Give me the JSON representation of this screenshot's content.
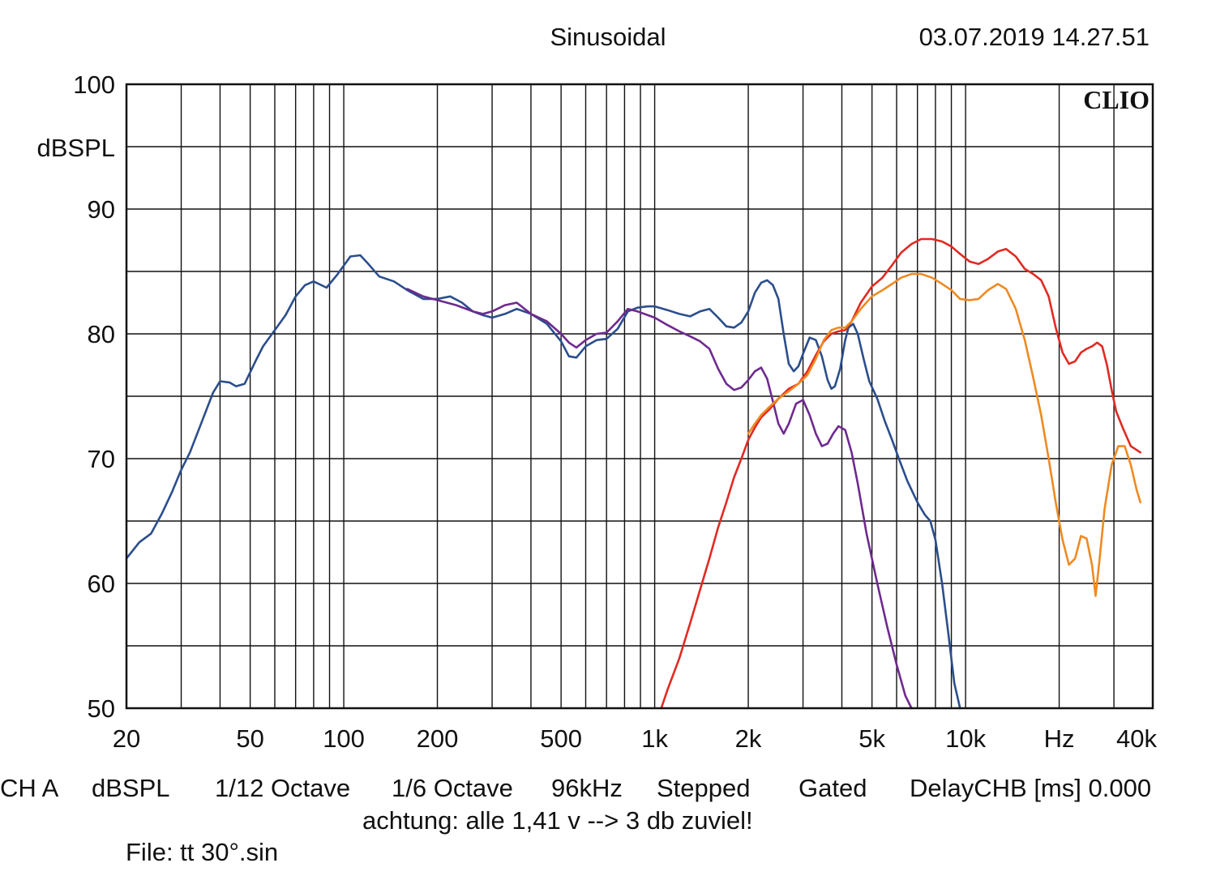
{
  "header": {
    "title": "Sinusoidal",
    "timestamp": "03.07.2019 14.27.51",
    "logo": "CLIO"
  },
  "chart_data": {
    "type": "line",
    "xscale": "log",
    "xlim": [
      20,
      40000
    ],
    "ylim": [
      50,
      100
    ],
    "ylabel": "dBSPL",
    "xlabel": "Hz",
    "y_ticks": [
      "100",
      "90",
      "80",
      "70",
      "60",
      "50"
    ],
    "x_ticks": [
      {
        "v": 20,
        "label": "20"
      },
      {
        "v": 50,
        "label": "50"
      },
      {
        "v": 100,
        "label": "100"
      },
      {
        "v": 200,
        "label": "200"
      },
      {
        "v": 500,
        "label": "500"
      },
      {
        "v": 1000,
        "label": "1k"
      },
      {
        "v": 2000,
        "label": "2k"
      },
      {
        "v": 5000,
        "label": "5k"
      },
      {
        "v": 10000,
        "label": "10k"
      },
      {
        "v": 20000,
        "label": "Hz"
      },
      {
        "v": 40000,
        "label": "40k"
      }
    ],
    "series": [
      {
        "name": "blue",
        "color": "#2b4e8c",
        "points": [
          [
            20,
            62.0
          ],
          [
            22,
            63.3
          ],
          [
            24,
            64.0
          ],
          [
            26,
            65.6
          ],
          [
            28,
            67.3
          ],
          [
            30,
            69.1
          ],
          [
            32,
            70.5
          ],
          [
            35,
            73.0
          ],
          [
            38,
            75.3
          ],
          [
            40,
            76.2
          ],
          [
            43,
            76.1
          ],
          [
            45,
            75.8
          ],
          [
            48,
            76.0
          ],
          [
            52,
            77.8
          ],
          [
            55,
            79.0
          ],
          [
            60,
            80.3
          ],
          [
            65,
            81.5
          ],
          [
            70,
            83.0
          ],
          [
            75,
            83.9
          ],
          [
            80,
            84.2
          ],
          [
            88,
            83.7
          ],
          [
            95,
            84.7
          ],
          [
            105,
            86.2
          ],
          [
            113,
            86.3
          ],
          [
            120,
            85.6
          ],
          [
            130,
            84.6
          ],
          [
            145,
            84.2
          ],
          [
            160,
            83.5
          ],
          [
            180,
            82.8
          ],
          [
            200,
            82.8
          ],
          [
            220,
            83.0
          ],
          [
            240,
            82.5
          ],
          [
            260,
            81.8
          ],
          [
            280,
            81.5
          ],
          [
            300,
            81.3
          ],
          [
            330,
            81.6
          ],
          [
            360,
            82.0
          ],
          [
            400,
            81.6
          ],
          [
            450,
            80.8
          ],
          [
            500,
            79.4
          ],
          [
            530,
            78.2
          ],
          [
            560,
            78.1
          ],
          [
            600,
            79.0
          ],
          [
            650,
            79.5
          ],
          [
            700,
            79.6
          ],
          [
            760,
            80.4
          ],
          [
            820,
            81.8
          ],
          [
            880,
            82.1
          ],
          [
            950,
            82.2
          ],
          [
            1000,
            82.2
          ],
          [
            1100,
            81.9
          ],
          [
            1200,
            81.6
          ],
          [
            1300,
            81.4
          ],
          [
            1400,
            81.8
          ],
          [
            1500,
            82.0
          ],
          [
            1600,
            81.3
          ],
          [
            1700,
            80.6
          ],
          [
            1800,
            80.5
          ],
          [
            1900,
            80.9
          ],
          [
            2000,
            81.8
          ],
          [
            2100,
            83.3
          ],
          [
            2200,
            84.1
          ],
          [
            2300,
            84.3
          ],
          [
            2400,
            83.9
          ],
          [
            2500,
            82.8
          ],
          [
            2600,
            80.0
          ],
          [
            2700,
            77.6
          ],
          [
            2800,
            77.0
          ],
          [
            2900,
            77.4
          ],
          [
            3000,
            78.4
          ],
          [
            3150,
            79.7
          ],
          [
            3300,
            79.5
          ],
          [
            3450,
            78.2
          ],
          [
            3600,
            76.3
          ],
          [
            3700,
            75.6
          ],
          [
            3800,
            75.8
          ],
          [
            3950,
            77.2
          ],
          [
            4100,
            79.5
          ],
          [
            4200,
            80.5
          ],
          [
            4350,
            80.8
          ],
          [
            4500,
            80.0
          ],
          [
            4700,
            78.0
          ],
          [
            4900,
            76.2
          ],
          [
            5200,
            74.8
          ],
          [
            5500,
            73.0
          ],
          [
            5800,
            71.5
          ],
          [
            6100,
            70.0
          ],
          [
            6500,
            68.2
          ],
          [
            7000,
            66.5
          ],
          [
            7400,
            65.5
          ],
          [
            7700,
            65.0
          ],
          [
            8000,
            63.5
          ],
          [
            8400,
            60.0
          ],
          [
            8800,
            56.0
          ],
          [
            9200,
            52.0
          ],
          [
            9600,
            50.0
          ]
        ]
      },
      {
        "name": "purple",
        "color": "#6e2a8e",
        "points": [
          [
            160,
            83.6
          ],
          [
            180,
            83.0
          ],
          [
            200,
            82.7
          ],
          [
            230,
            82.3
          ],
          [
            260,
            81.8
          ],
          [
            280,
            81.6
          ],
          [
            300,
            81.8
          ],
          [
            330,
            82.3
          ],
          [
            360,
            82.5
          ],
          [
            400,
            81.6
          ],
          [
            450,
            81.0
          ],
          [
            500,
            80.0
          ],
          [
            530,
            79.3
          ],
          [
            560,
            78.9
          ],
          [
            600,
            79.5
          ],
          [
            650,
            80.0
          ],
          [
            700,
            80.1
          ],
          [
            760,
            81.0
          ],
          [
            820,
            82.0
          ],
          [
            880,
            81.8
          ],
          [
            950,
            81.5
          ],
          [
            1000,
            81.3
          ],
          [
            1100,
            80.7
          ],
          [
            1200,
            80.2
          ],
          [
            1300,
            79.8
          ],
          [
            1400,
            79.4
          ],
          [
            1500,
            78.8
          ],
          [
            1600,
            77.2
          ],
          [
            1700,
            76.0
          ],
          [
            1800,
            75.5
          ],
          [
            1900,
            75.7
          ],
          [
            2000,
            76.3
          ],
          [
            2100,
            77.0
          ],
          [
            2200,
            77.3
          ],
          [
            2300,
            76.4
          ],
          [
            2400,
            74.6
          ],
          [
            2500,
            72.8
          ],
          [
            2600,
            72.0
          ],
          [
            2700,
            72.8
          ],
          [
            2850,
            74.4
          ],
          [
            3000,
            74.7
          ],
          [
            3150,
            73.5
          ],
          [
            3300,
            72.0
          ],
          [
            3450,
            71.0
          ],
          [
            3600,
            71.2
          ],
          [
            3750,
            72.0
          ],
          [
            3900,
            72.6
          ],
          [
            4100,
            72.3
          ],
          [
            4300,
            70.5
          ],
          [
            4500,
            68.0
          ],
          [
            4800,
            64.0
          ],
          [
            5200,
            60.0
          ],
          [
            5600,
            56.5
          ],
          [
            6000,
            53.5
          ],
          [
            6400,
            51.0
          ],
          [
            6700,
            50.0
          ]
        ]
      },
      {
        "name": "red",
        "color": "#e02a22",
        "points": [
          [
            1050,
            50.0
          ],
          [
            1100,
            51.5
          ],
          [
            1200,
            54.0
          ],
          [
            1300,
            56.8
          ],
          [
            1400,
            59.5
          ],
          [
            1500,
            62.0
          ],
          [
            1600,
            64.5
          ],
          [
            1700,
            66.5
          ],
          [
            1800,
            68.5
          ],
          [
            1900,
            70.0
          ],
          [
            2000,
            71.5
          ],
          [
            2100,
            72.5
          ],
          [
            2200,
            73.3
          ],
          [
            2350,
            74.0
          ],
          [
            2500,
            74.8
          ],
          [
            2700,
            75.6
          ],
          [
            2900,
            76.0
          ],
          [
            3100,
            77.0
          ],
          [
            3300,
            78.3
          ],
          [
            3500,
            79.4
          ],
          [
            3700,
            80.0
          ],
          [
            3900,
            80.2
          ],
          [
            4100,
            80.3
          ],
          [
            4300,
            81.0
          ],
          [
            4600,
            82.5
          ],
          [
            5000,
            83.8
          ],
          [
            5400,
            84.5
          ],
          [
            5800,
            85.5
          ],
          [
            6200,
            86.5
          ],
          [
            6700,
            87.2
          ],
          [
            7200,
            87.6
          ],
          [
            7800,
            87.6
          ],
          [
            8400,
            87.4
          ],
          [
            9000,
            87.0
          ],
          [
            9600,
            86.4
          ],
          [
            10300,
            85.8
          ],
          [
            11000,
            85.6
          ],
          [
            11800,
            86.0
          ],
          [
            12700,
            86.6
          ],
          [
            13500,
            86.8
          ],
          [
            14500,
            86.2
          ],
          [
            15500,
            85.2
          ],
          [
            16500,
            84.8
          ],
          [
            17500,
            84.3
          ],
          [
            18500,
            83.0
          ],
          [
            19500,
            80.5
          ],
          [
            20500,
            78.5
          ],
          [
            21500,
            77.6
          ],
          [
            22500,
            77.8
          ],
          [
            23500,
            78.5
          ],
          [
            24500,
            78.8
          ],
          [
            25500,
            79.0
          ],
          [
            26500,
            79.3
          ],
          [
            27500,
            79.0
          ],
          [
            28500,
            77.5
          ],
          [
            29500,
            75.5
          ],
          [
            30500,
            73.8
          ],
          [
            32000,
            72.5
          ],
          [
            34000,
            71.0
          ],
          [
            36500,
            70.5
          ]
        ]
      },
      {
        "name": "orange",
        "color": "#ee8a22",
        "points": [
          [
            2000,
            72.0
          ],
          [
            2100,
            72.8
          ],
          [
            2200,
            73.5
          ],
          [
            2350,
            74.2
          ],
          [
            2500,
            74.8
          ],
          [
            2700,
            75.4
          ],
          [
            2900,
            76.0
          ],
          [
            3100,
            76.7
          ],
          [
            3300,
            78.0
          ],
          [
            3500,
            79.5
          ],
          [
            3700,
            80.3
          ],
          [
            3900,
            80.5
          ],
          [
            4100,
            80.5
          ],
          [
            4300,
            81.0
          ],
          [
            4600,
            82.0
          ],
          [
            5000,
            83.0
          ],
          [
            5400,
            83.5
          ],
          [
            5800,
            84.0
          ],
          [
            6200,
            84.5
          ],
          [
            6700,
            84.8
          ],
          [
            7200,
            84.8
          ],
          [
            7800,
            84.5
          ],
          [
            8400,
            84.0
          ],
          [
            9000,
            83.5
          ],
          [
            9600,
            82.8
          ],
          [
            10300,
            82.7
          ],
          [
            11000,
            82.8
          ],
          [
            11800,
            83.5
          ],
          [
            12700,
            84.0
          ],
          [
            13500,
            83.6
          ],
          [
            14500,
            82.0
          ],
          [
            15500,
            79.5
          ],
          [
            16500,
            76.5
          ],
          [
            17500,
            73.5
          ],
          [
            18500,
            70.0
          ],
          [
            19500,
            66.5
          ],
          [
            20500,
            63.5
          ],
          [
            21500,
            61.5
          ],
          [
            22500,
            62.0
          ],
          [
            23500,
            63.8
          ],
          [
            24500,
            63.6
          ],
          [
            25500,
            61.5
          ],
          [
            26200,
            59.0
          ],
          [
            27000,
            62.0
          ],
          [
            28000,
            66.0
          ],
          [
            29500,
            69.5
          ],
          [
            31000,
            71.0
          ],
          [
            32500,
            71.0
          ],
          [
            34000,
            69.5
          ],
          [
            35500,
            67.5
          ],
          [
            36500,
            66.5
          ]
        ]
      }
    ]
  },
  "footer": {
    "settings": [
      "CH A",
      "dBSPL",
      "1/12 Octave",
      "1/6 Octave",
      "96kHz",
      "Stepped",
      "Gated",
      "DelayCHB [ms] 0.000"
    ],
    "note": "achtung: alle 1,41 v --> 3 db zuviel!",
    "file": "File: tt 30°.sin"
  }
}
